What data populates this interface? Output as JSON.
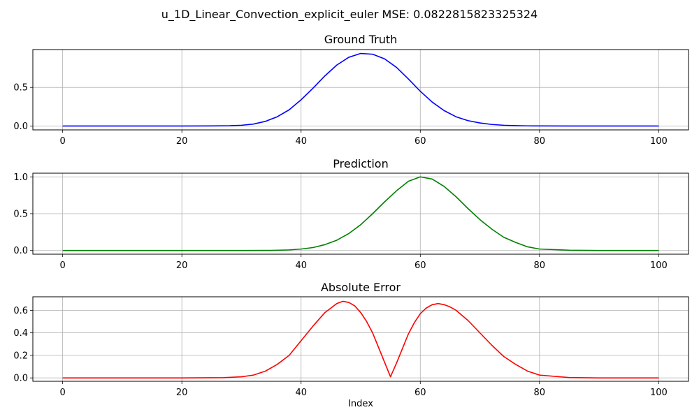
{
  "figure_title": "u_1D_Linear_Convection_explicit_euler MSE: 0.0822815823325324",
  "chart_data": [
    {
      "type": "line",
      "title": "Ground Truth",
      "xlabel": "",
      "ylabel": "",
      "color": "#0000ff",
      "grid": true,
      "xlim": [
        -5,
        105
      ],
      "ylim": [
        -0.05,
        0.99
      ],
      "xticks": [
        0,
        20,
        40,
        60,
        80,
        100
      ],
      "xtick_labels": [
        "0",
        "20",
        "40",
        "60",
        "80",
        "100"
      ],
      "yticks": [
        0,
        0.5
      ],
      "ytick_labels": [
        "0.0",
        "0.5"
      ],
      "x": [
        0,
        10,
        20,
        25,
        28,
        30,
        32,
        34,
        36,
        38,
        40,
        42,
        44,
        46,
        48,
        50,
        52,
        54,
        56,
        58,
        60,
        62,
        64,
        66,
        68,
        70,
        72,
        74,
        76,
        78,
        80,
        85,
        90,
        100
      ],
      "y": [
        0,
        0,
        0,
        0.001,
        0.004,
        0.01,
        0.025,
        0.06,
        0.12,
        0.21,
        0.34,
        0.49,
        0.65,
        0.79,
        0.89,
        0.94,
        0.93,
        0.87,
        0.76,
        0.61,
        0.45,
        0.31,
        0.2,
        0.12,
        0.07,
        0.04,
        0.02,
        0.01,
        0.005,
        0.002,
        0.001,
        0,
        0,
        0
      ]
    },
    {
      "type": "line",
      "title": "Prediction",
      "xlabel": "",
      "ylabel": "",
      "color": "#008000",
      "grid": true,
      "xlim": [
        -5,
        105
      ],
      "ylim": [
        -0.05,
        1.05
      ],
      "xticks": [
        0,
        20,
        40,
        60,
        80,
        100
      ],
      "xtick_labels": [
        "0",
        "20",
        "40",
        "60",
        "80",
        "100"
      ],
      "yticks": [
        0,
        0.5,
        1.0
      ],
      "ytick_labels": [
        "0.0",
        "0.5",
        "1.0"
      ],
      "x": [
        0,
        20,
        30,
        35,
        38,
        40,
        42,
        44,
        46,
        48,
        50,
        52,
        54,
        56,
        58,
        60,
        62,
        64,
        66,
        68,
        70,
        72,
        74,
        76,
        78,
        80,
        85,
        90,
        100
      ],
      "y": [
        0,
        0,
        0,
        0.002,
        0.008,
        0.02,
        0.04,
        0.08,
        0.14,
        0.23,
        0.35,
        0.5,
        0.66,
        0.81,
        0.94,
        1.0,
        0.97,
        0.87,
        0.73,
        0.57,
        0.42,
        0.29,
        0.18,
        0.11,
        0.05,
        0.02,
        0.004,
        0,
        0
      ]
    },
    {
      "type": "line",
      "title": "Absolute Error",
      "xlabel": "Index",
      "ylabel": "",
      "color": "#ff0000",
      "grid": true,
      "xlim": [
        -5,
        105
      ],
      "ylim": [
        -0.03,
        0.72
      ],
      "xticks": [
        0,
        20,
        40,
        60,
        80,
        100
      ],
      "xtick_labels": [
        "0",
        "20",
        "40",
        "60",
        "80",
        "100"
      ],
      "yticks": [
        0,
        0.2,
        0.4,
        0.6
      ],
      "ytick_labels": [
        "0.0",
        "0.2",
        "0.4",
        "0.6"
      ],
      "x": [
        0,
        20,
        27,
        30,
        32,
        34,
        36,
        38,
        40,
        42,
        44,
        46,
        47,
        48,
        49,
        50,
        51,
        52,
        53,
        54,
        55,
        56,
        57,
        58,
        59,
        60,
        61,
        62,
        63,
        64,
        65,
        66,
        68,
        70,
        72,
        74,
        76,
        78,
        80,
        85,
        90,
        100
      ],
      "y": [
        0,
        0,
        0.002,
        0.01,
        0.025,
        0.06,
        0.12,
        0.2,
        0.33,
        0.46,
        0.58,
        0.66,
        0.68,
        0.67,
        0.64,
        0.58,
        0.5,
        0.4,
        0.27,
        0.14,
        0.01,
        0.13,
        0.26,
        0.39,
        0.49,
        0.57,
        0.62,
        0.65,
        0.66,
        0.65,
        0.63,
        0.6,
        0.51,
        0.4,
        0.29,
        0.19,
        0.12,
        0.06,
        0.025,
        0.003,
        0,
        0
      ]
    }
  ]
}
